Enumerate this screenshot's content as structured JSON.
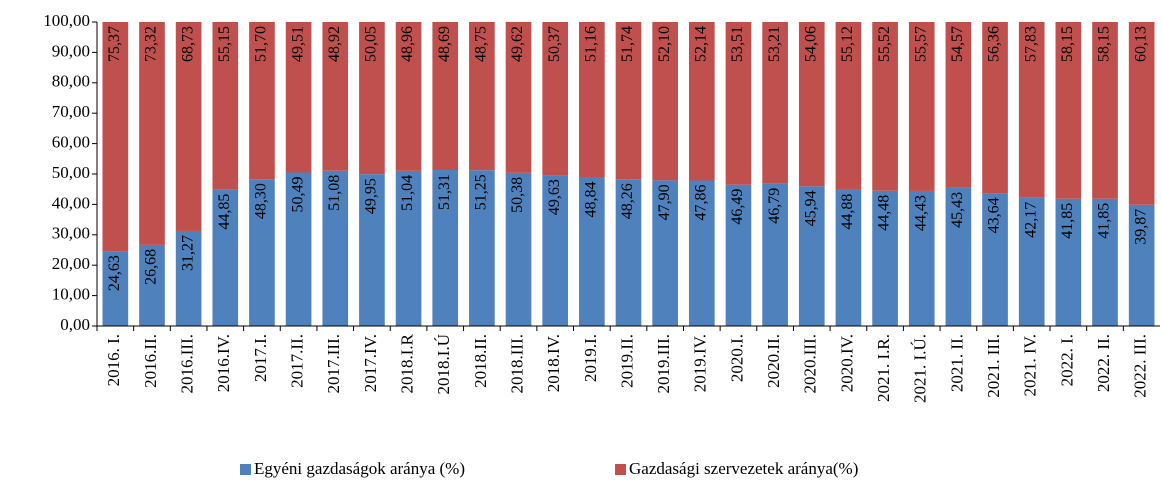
{
  "chart_data": {
    "type": "stacked_bar",
    "categories": [
      "2016. I.",
      "2016.II.",
      "2016.III.",
      "2016.IV.",
      "2017.I.",
      "2017.II.",
      "2017.III.",
      "2017.IV.",
      "2018.I.R",
      "2018.I.Ú",
      "2018.II.",
      "2018.III.",
      "2018.IV.",
      "2019.I.",
      "2019.II.",
      "2019.III.",
      "2019.IV.",
      "2020.I.",
      "2020.II.",
      "2020.III.",
      "2020.IV.",
      "2021. I.R.",
      "2021. I.Ú.",
      "2021. II.",
      "2021. III.",
      "2021. IV.",
      "2022. I.",
      "2022. II.",
      "2022. III."
    ],
    "series": [
      {
        "name": "Egyéni gazdaságok aránya (%)",
        "color": "#4f81bd",
        "values": [
          24.63,
          26.68,
          31.27,
          44.85,
          48.3,
          50.49,
          51.08,
          49.95,
          51.04,
          51.31,
          51.25,
          50.38,
          49.63,
          48.84,
          48.26,
          47.9,
          47.86,
          46.49,
          46.79,
          45.94,
          44.88,
          44.48,
          44.43,
          45.43,
          43.64,
          42.17,
          41.85,
          41.85,
          39.87
        ],
        "value_labels": [
          "24,63",
          "26,68",
          "31,27",
          "44,85",
          "48,30",
          "50,49",
          "51,08",
          "49,95",
          "51,04",
          "51,31",
          "51,25",
          "50,38",
          "49,63",
          "48,84",
          "48,26",
          "47,90",
          "47,86",
          "46,49",
          "46,79",
          "45,94",
          "44,88",
          "44,48",
          "44,43",
          "45,43",
          "43,64",
          "42,17",
          "41,85",
          "41,85",
          "39,87"
        ]
      },
      {
        "name": "Gazdasági szervezetek aránya(%)",
        "color": "#c0504d",
        "values": [
          75.37,
          73.32,
          68.73,
          55.15,
          51.7,
          49.51,
          48.92,
          50.05,
          48.96,
          48.69,
          48.75,
          49.62,
          50.37,
          51.16,
          51.74,
          52.1,
          52.14,
          53.51,
          53.21,
          54.06,
          55.12,
          55.52,
          55.57,
          54.57,
          56.36,
          57.83,
          58.15,
          58.15,
          60.13
        ],
        "value_labels": [
          "75,37",
          "73,32",
          "68,73",
          "55,15",
          "51,70",
          "49,51",
          "48,92",
          "50,05",
          "48,96",
          "48,69",
          "48,75",
          "49,62",
          "50,37",
          "51,16",
          "51,74",
          "52,10",
          "52,14",
          "53,51",
          "53,21",
          "54,06",
          "55,12",
          "55,52",
          "55,57",
          "54,57",
          "56,36",
          "57,83",
          "58,15",
          "58,15",
          "60,13"
        ]
      }
    ],
    "ylim": [
      0,
      100
    ],
    "yticks": [
      {
        "value": 0,
        "label": "0,00"
      },
      {
        "value": 10,
        "label": "10,00"
      },
      {
        "value": 20,
        "label": "20,00"
      },
      {
        "value": 30,
        "label": "30,00"
      },
      {
        "value": 40,
        "label": "40,00"
      },
      {
        "value": 50,
        "label": "50,00"
      },
      {
        "value": 60,
        "label": "60,00"
      },
      {
        "value": 70,
        "label": "70,00"
      },
      {
        "value": 80,
        "label": "80,00"
      },
      {
        "value": 90,
        "label": "90,00"
      },
      {
        "value": 100,
        "label": "100,00"
      }
    ],
    "legend": "bottom"
  }
}
